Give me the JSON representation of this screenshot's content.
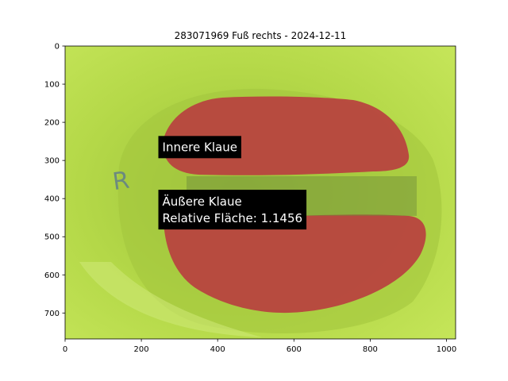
{
  "chart_data": {
    "type": "image",
    "title": "283071969 Fuß rechts - 2024-12-11",
    "xlabel": "",
    "ylabel": "",
    "xlim": [
      0,
      1024
    ],
    "ylim": [
      768,
      0
    ],
    "x_ticks": [
      0,
      200,
      400,
      600,
      800,
      1000
    ],
    "y_ticks": [
      0,
      100,
      200,
      300,
      400,
      500,
      600,
      700
    ],
    "x_tick_labels": [
      "0",
      "200",
      "400",
      "600",
      "800",
      "1000"
    ],
    "y_tick_labels": [
      "0",
      "100",
      "200",
      "300",
      "400",
      "500",
      "600",
      "700"
    ],
    "annotations": [
      {
        "name": "inner-claw-label",
        "lines": [
          "Innere Klaue"
        ],
        "x": 255,
        "y": 265
      },
      {
        "name": "outer-claw-label",
        "lines": [
          "Äußere Klaue",
          "Relative Fläche: 1.1456"
        ],
        "x": 255,
        "y": 430
      }
    ]
  },
  "colors": {
    "background": "#b8dc48",
    "segmentation": "#b8403f",
    "annotation_box": "#000000",
    "annotation_text": "#ffffff"
  },
  "image_content": {
    "marker_text": "R"
  }
}
